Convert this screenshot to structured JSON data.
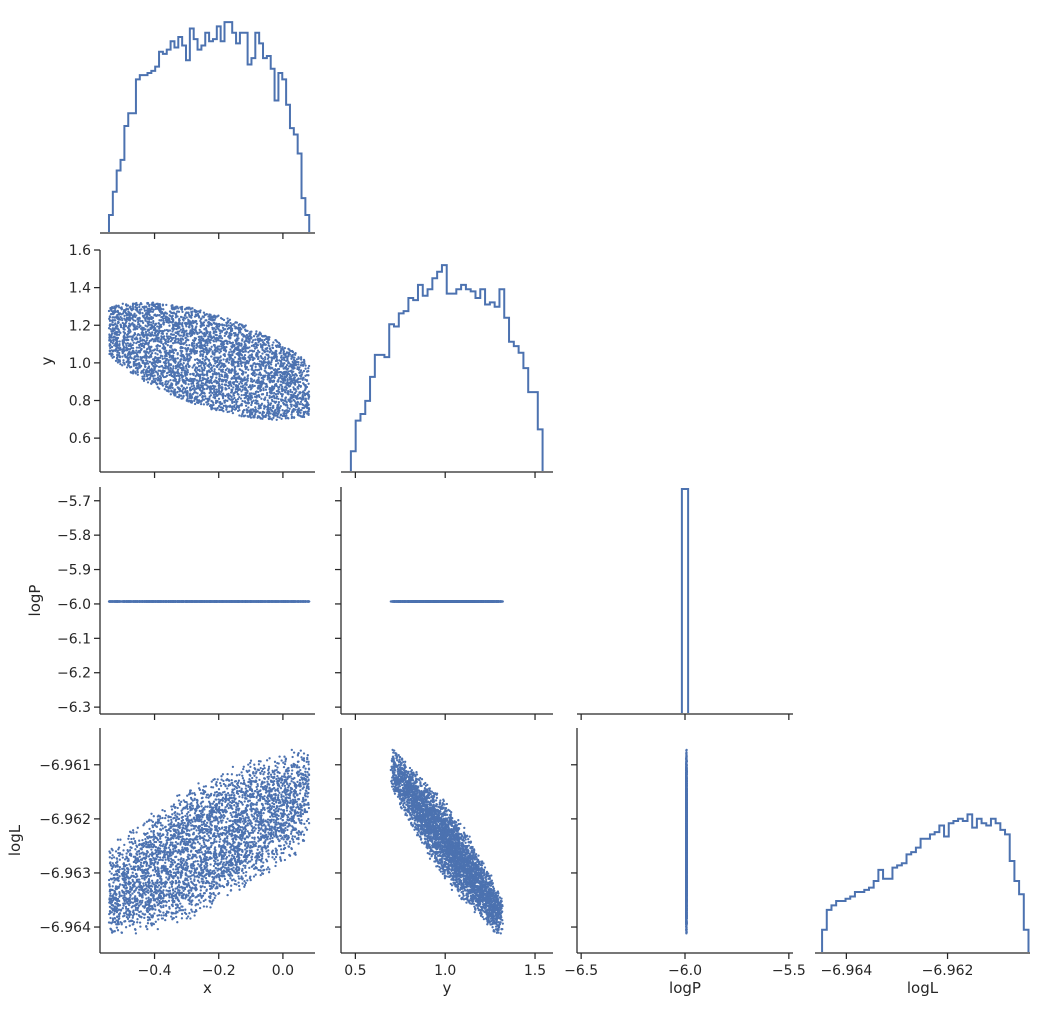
{
  "chart_data": {
    "type": "corner",
    "color": "#4c72b0",
    "variables": [
      "x",
      "y",
      "logP",
      "logL"
    ],
    "axes": {
      "x": {
        "range": [
          -0.57,
          0.1
        ],
        "ticks": [
          -0.4,
          -0.2,
          0.0
        ],
        "tick_labels": [
          "−0.4",
          "−0.2",
          "0.0"
        ]
      },
      "y": {
        "range": [
          0.42,
          1.6
        ],
        "ticks": [
          0.5,
          1.0,
          1.5
        ],
        "tick_labels": [
          "0.5",
          "1.0",
          "1.5"
        ],
        "row_ticks": [
          0.6,
          0.8,
          1.0,
          1.2,
          1.4,
          1.6
        ],
        "row_tick_labels": [
          "0.6",
          "0.8",
          "1.0",
          "1.2",
          "1.4",
          "1.6"
        ]
      },
      "logP": {
        "range": [
          -6.52,
          -5.48
        ],
        "ticks": [
          -6.5,
          -6.0,
          -5.5
        ],
        "tick_labels": [
          "−6.5",
          "−6.0",
          "−5.5"
        ],
        "row_range": [
          -6.32,
          -5.66
        ],
        "row_ticks": [
          -5.7,
          -5.8,
          -5.9,
          -6.0,
          -6.1,
          -6.2,
          -6.3
        ],
        "row_tick_labels": [
          "−5.7",
          "−5.8",
          "−5.9",
          "−6.0",
          "−6.1",
          "−6.2",
          "−6.3"
        ]
      },
      "logL": {
        "range": [
          -6.96462,
          -6.96037
        ],
        "ticks": [
          -6.964,
          -6.962
        ],
        "tick_labels": [
          "−6.964",
          "−6.962"
        ],
        "row_range": [
          -6.96448,
          -6.96032
        ],
        "row_ticks": [
          -6.961,
          -6.962,
          -6.963,
          -6.964
        ],
        "row_tick_labels": [
          "−6.961",
          "−6.962",
          "−6.963",
          "−6.964"
        ]
      }
    },
    "histograms": {
      "x": {
        "bin_edges_range": [
          -0.542,
          0.082
        ],
        "counts": [
          8,
          19,
          29,
          34,
          50,
          56,
          56,
          72,
          74,
          74,
          75,
          76,
          78,
          85,
          84,
          86,
          90,
          87,
          92,
          88,
          81,
          96,
          91,
          86,
          88,
          94,
          90,
          91,
          97,
          90,
          99,
          99,
          94,
          89,
          94,
          94,
          79,
          82,
          94,
          89,
          82,
          83,
          77,
          62,
          75,
          72,
          60,
          49,
          46,
          37,
          16,
          8
        ],
        "ymax": 100
      },
      "y": {
        "bin_edges_range": [
          0.475,
          1.542
        ],
        "counts": [
          9,
          23,
          26,
          32,
          43,
          53,
          53,
          52,
          67,
          66,
          72,
          73,
          79,
          78,
          85,
          80,
          83,
          88,
          91,
          94,
          81,
          81,
          83,
          85,
          83,
          82,
          79,
          83,
          76,
          77,
          75,
          83,
          70,
          59,
          57,
          54,
          47,
          36,
          36,
          19
        ],
        "ymax": 100
      },
      "logP": {
        "bin_edges_range": [
          -6.015,
          -5.985
        ],
        "counts": [
          100
        ],
        "ymax": 100
      },
      "logL": {
        "bin_edges_range": [
          -6.96448,
          -6.9604
        ],
        "counts": [
          10,
          19,
          21,
          23,
          23,
          24,
          25,
          27,
          27,
          28,
          29,
          32,
          37,
          33,
          33,
          38,
          39,
          40,
          44,
          45,
          47,
          51,
          51,
          53,
          54,
          57,
          52,
          58,
          59,
          60,
          59,
          62,
          56,
          60,
          58,
          57,
          60,
          58,
          55,
          53,
          41,
          32,
          26,
          10
        ],
        "ymax": 100
      }
    },
    "scatter": {
      "points": 4000,
      "pairs": [
        {
          "x": "x",
          "y": "y"
        },
        {
          "x": "x",
          "y": "logP"
        },
        {
          "x": "y",
          "y": "logP"
        },
        {
          "x": "x",
          "y": "logL"
        },
        {
          "x": "y",
          "y": "logL"
        },
        {
          "x": "logP",
          "y": "logL"
        }
      ],
      "constant_logP": -5.993
    }
  }
}
